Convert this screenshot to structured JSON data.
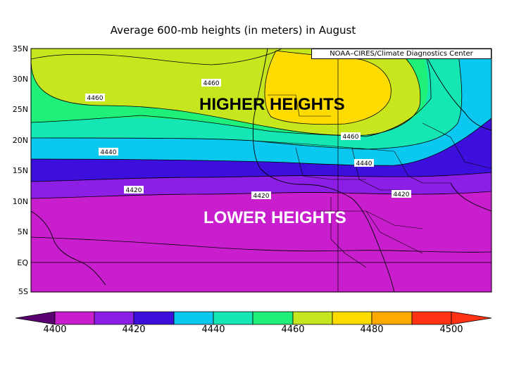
{
  "title": "Average 600-mb heights (in meters) in August",
  "credit": "NOAA–CIRES/Climate Diagnostics Center",
  "annotations": {
    "higher": "HIGHER HEIGHTS",
    "lower": "LOWER HEIGHTS"
  },
  "latitude_labels": [
    "35N",
    "30N",
    "25N",
    "20N",
    "15N",
    "10N",
    "5N",
    "EQ",
    "5S"
  ],
  "contour_labels": [
    "4460",
    "4460",
    "4460",
    "4440",
    "4440",
    "4420",
    "4420",
    "4420"
  ],
  "colorbar": {
    "tick_labels": [
      "4400",
      "4420",
      "4440",
      "4460",
      "4480",
      "4500"
    ],
    "colors": [
      "#5a0070",
      "#c81ecd",
      "#8c1ee6",
      "#3c0fdc",
      "#0ac8f0",
      "#14e6b4",
      "#1ef07a",
      "#c8e61e",
      "#ffdc00",
      "#ffaa00",
      "#ff3214"
    ]
  },
  "bands": [
    {
      "name": "band-4490",
      "color": "#ffdc00"
    },
    {
      "name": "band-4470",
      "color": "#c8e61e"
    },
    {
      "name": "band-4460",
      "color": "#1ef07a"
    },
    {
      "name": "band-4450",
      "color": "#14e6b4"
    },
    {
      "name": "band-4440",
      "color": "#0ac8f0"
    },
    {
      "name": "band-4430",
      "color": "#3c0fdc"
    },
    {
      "name": "band-4420",
      "color": "#8c1ee6"
    },
    {
      "name": "band-4410",
      "color": "#c81ecd"
    }
  ]
}
